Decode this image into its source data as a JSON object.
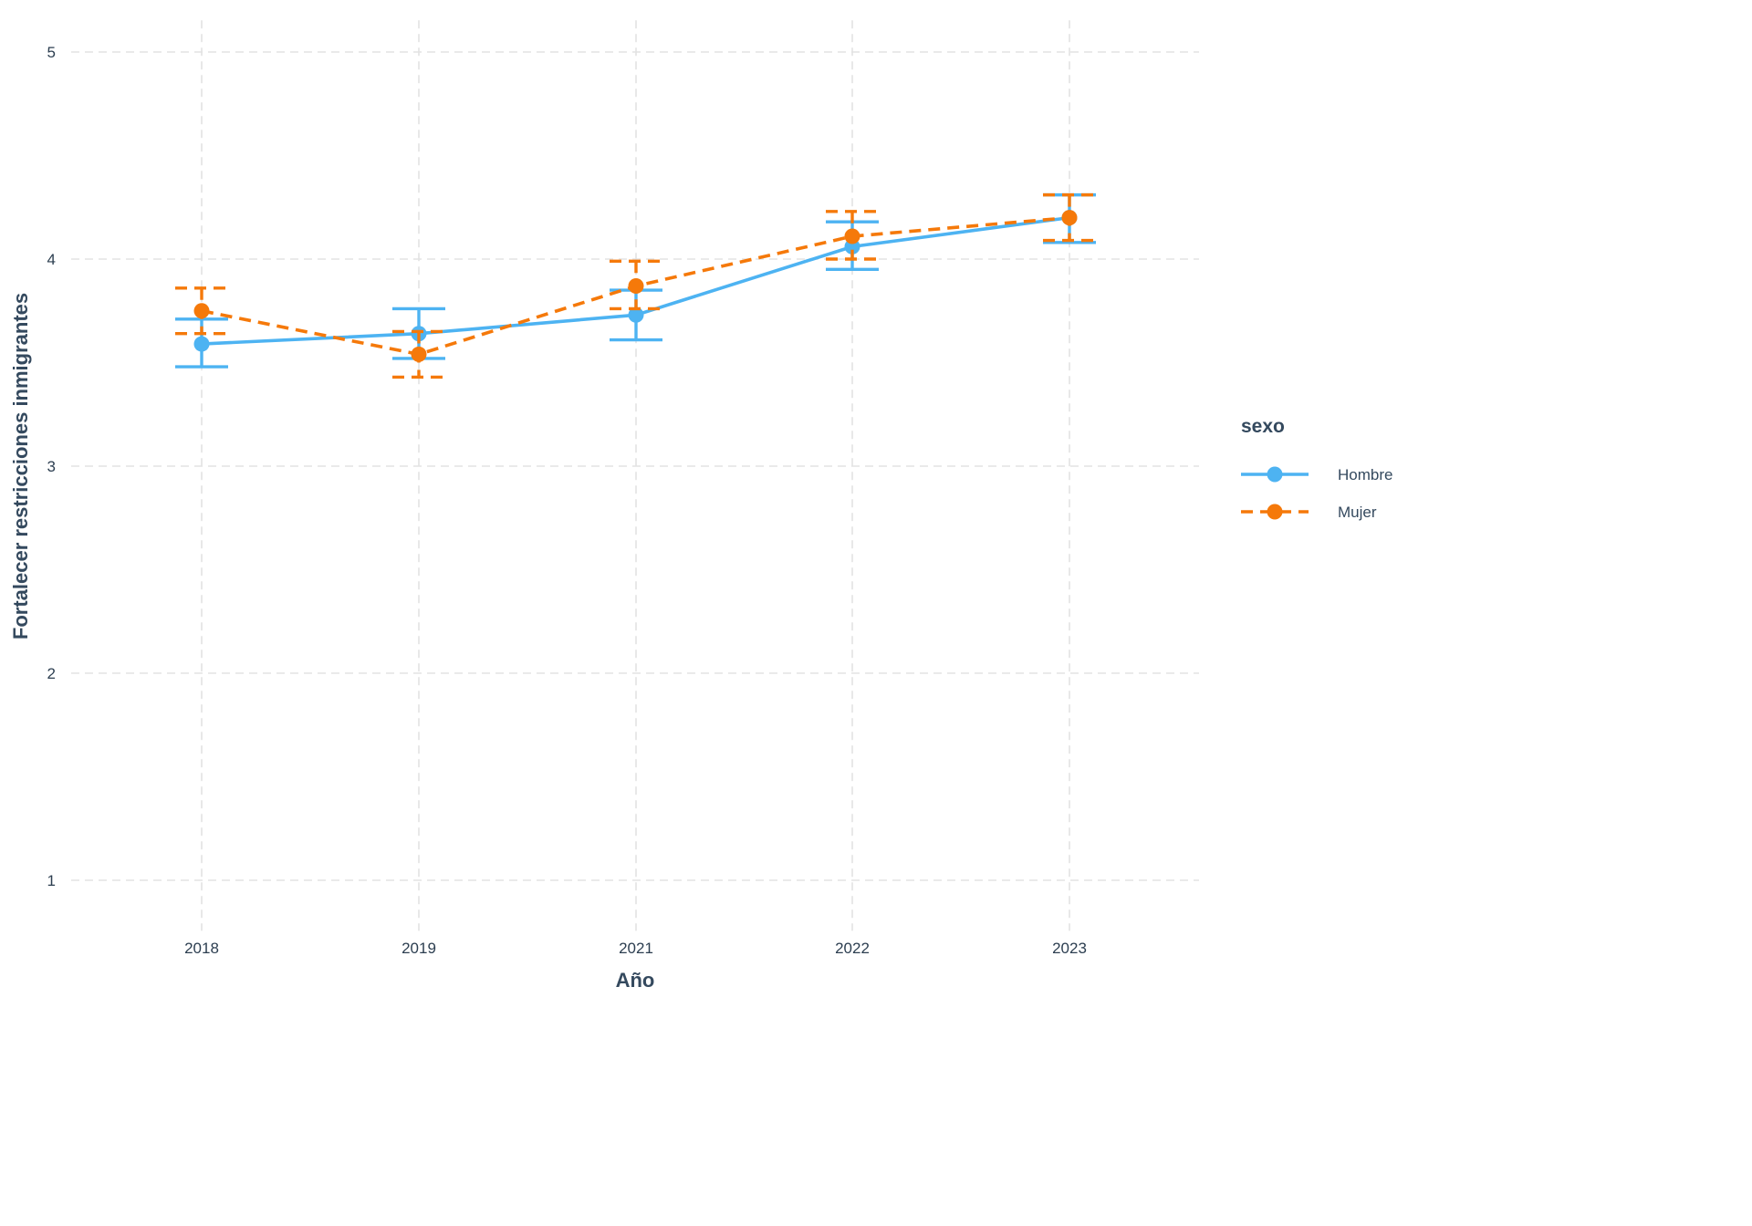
{
  "chart_data": {
    "type": "line",
    "xlabel": "Año",
    "ylabel": "Fortalecer restricciones inmigrantes",
    "categories": [
      "2018",
      "2019",
      "2021",
      "2022",
      "2023"
    ],
    "ylim": [
      0.8,
      5.1
    ],
    "yticks": [
      1,
      2,
      3,
      4,
      5
    ],
    "grid": true,
    "legend": {
      "title": "sexo",
      "placement": "right"
    },
    "series": [
      {
        "name": "Hombre",
        "color": "#4db3f2",
        "line_style": "solid",
        "values": [
          3.59,
          3.64,
          3.73,
          4.06,
          4.2
        ],
        "error_low": [
          3.48,
          3.52,
          3.61,
          3.95,
          4.08
        ],
        "error_high": [
          3.71,
          3.76,
          3.85,
          4.18,
          4.31
        ]
      },
      {
        "name": "Mujer",
        "color": "#f5790a",
        "line_style": "dashed",
        "values": [
          3.75,
          3.54,
          3.87,
          4.11,
          4.2
        ],
        "error_low": [
          3.64,
          3.43,
          3.76,
          4.0,
          4.09
        ],
        "error_high": [
          3.86,
          3.65,
          3.99,
          4.23,
          4.31
        ]
      }
    ]
  }
}
